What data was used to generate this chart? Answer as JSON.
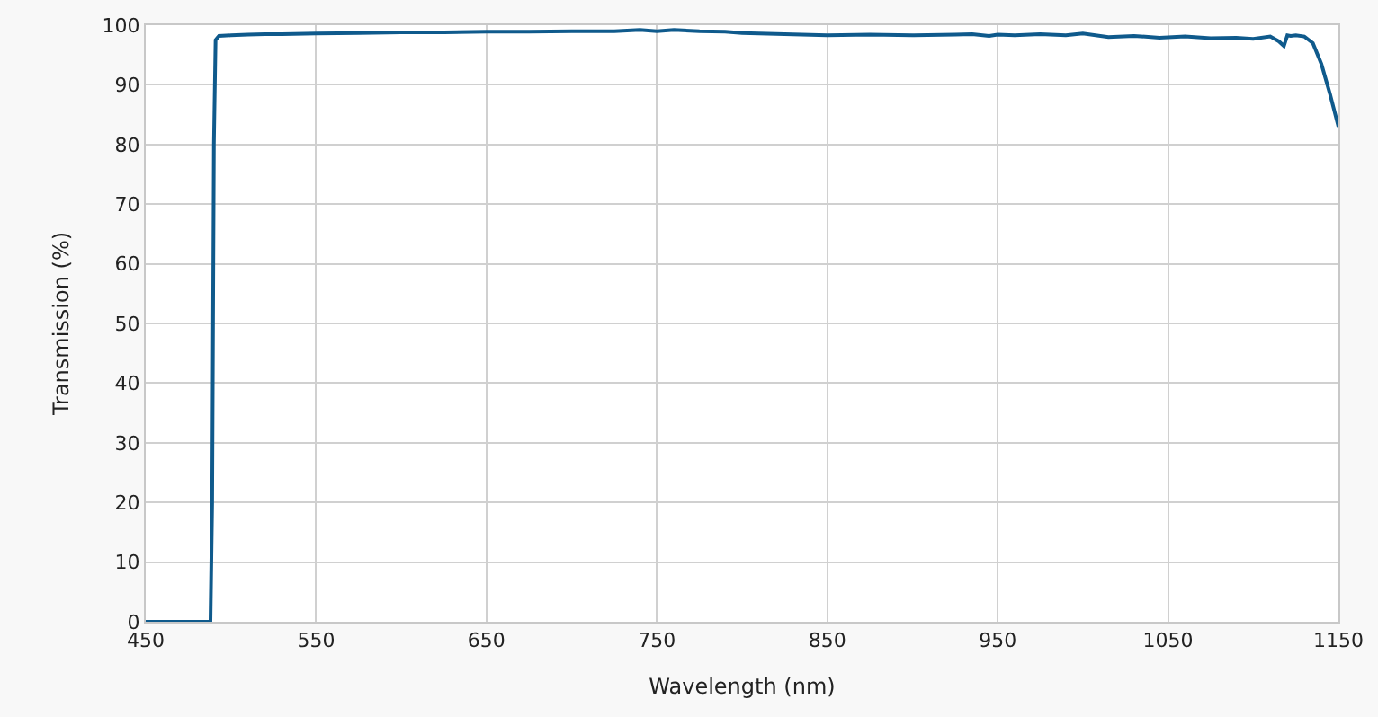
{
  "chart_data": {
    "type": "line",
    "xlabel": "Wavelength (nm)",
    "ylabel": "Transmission (%)",
    "x": [
      450,
      488,
      489,
      490,
      491,
      493,
      500,
      510,
      520,
      530,
      550,
      575,
      600,
      625,
      650,
      675,
      700,
      725,
      740,
      750,
      760,
      775,
      790,
      800,
      825,
      850,
      875,
      900,
      925,
      935,
      945,
      950,
      960,
      975,
      990,
      1000,
      1015,
      1030,
      1045,
      1060,
      1075,
      1090,
      1100,
      1110,
      1115,
      1118,
      1120,
      1122,
      1125,
      1130,
      1135,
      1140,
      1145,
      1150
    ],
    "series": [
      {
        "color": "#0f5a8c",
        "values": [
          0,
          0,
          20,
          80,
          97.5,
          98.2,
          98.3,
          98.4,
          98.5,
          98.5,
          98.6,
          98.7,
          98.8,
          98.8,
          98.9,
          98.9,
          99.0,
          99.0,
          99.2,
          99.0,
          99.2,
          99.0,
          98.9,
          98.7,
          98.5,
          98.3,
          98.4,
          98.3,
          98.4,
          98.5,
          98.2,
          98.4,
          98.3,
          98.5,
          98.3,
          98.6,
          98.0,
          98.2,
          97.9,
          98.1,
          97.8,
          97.9,
          97.7,
          98.1,
          97.3,
          96.5,
          98.3,
          98.2,
          98.3,
          98.1,
          97.0,
          93.5,
          88.5,
          83.0
        ]
      }
    ],
    "xlim": [
      450,
      1150
    ],
    "xticks": [
      450,
      550,
      650,
      750,
      850,
      950,
      1050,
      1150
    ],
    "ylim": [
      0,
      100
    ],
    "yticks": [
      0,
      10,
      20,
      30,
      40,
      50,
      60,
      70,
      80,
      90,
      100
    ],
    "grid": true,
    "marker": "none",
    "line_style": "solid"
  }
}
